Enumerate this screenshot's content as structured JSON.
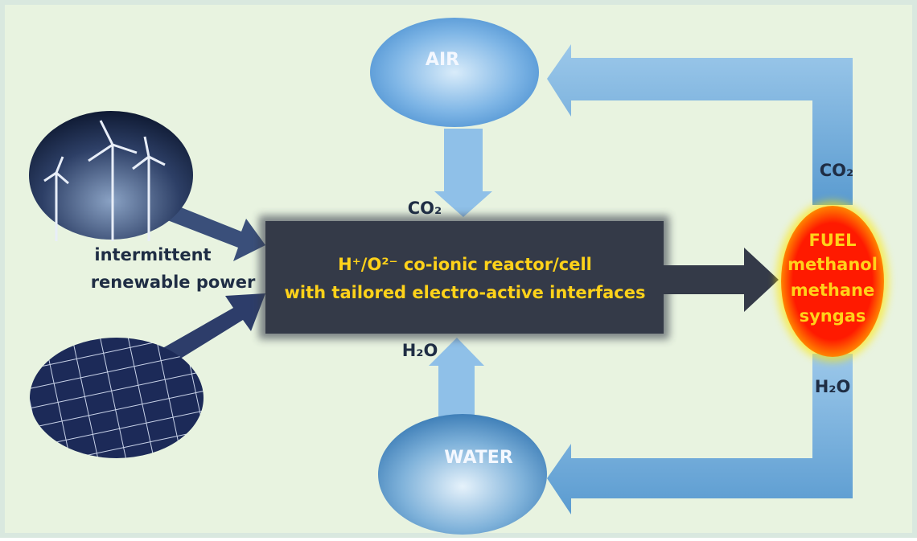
{
  "nodes": {
    "air": {
      "label": "AIR"
    },
    "water": {
      "label": "WATER"
    },
    "power": {
      "label_lines": [
        "intermittent",
        "renewable power"
      ]
    },
    "reactor": {
      "label_lines": [
        "H⁺/O²⁻ co-ionic reactor/cell",
        "with tailored electro-active interfaces"
      ]
    },
    "fuel": {
      "label_lines": [
        "FUEL",
        "methanol",
        "methane",
        "syngas"
      ]
    }
  },
  "edges": {
    "air_to_reactor": {
      "label": "CO₂"
    },
    "water_to_reactor": {
      "label": "H₂O"
    },
    "fuel_to_air": {
      "label": "CO₂"
    },
    "fuel_to_water": {
      "label": "H₂O"
    }
  }
}
